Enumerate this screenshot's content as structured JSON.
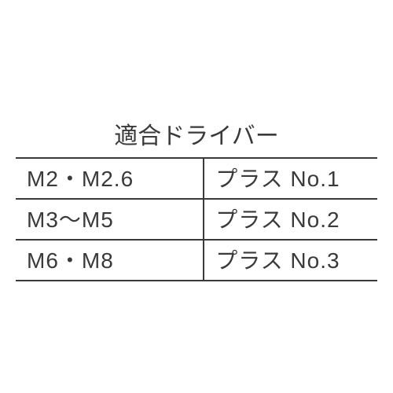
{
  "table": {
    "title": "適合ドライバー",
    "title_fontsize": 30,
    "cell_fontsize": 28,
    "text_color": "#3a3a3a",
    "border_color": "#3a3a3a",
    "background_color": "#ffffff",
    "border_width": 2,
    "columns": [
      {
        "key": "size",
        "width_pct": 52,
        "align": "left"
      },
      {
        "key": "driver",
        "width_pct": 48,
        "align": "left"
      }
    ],
    "rows": [
      {
        "size": "M2・M2.6",
        "driver": "プラス No.1"
      },
      {
        "size": "M3～M5",
        "driver": "プラス No.2"
      },
      {
        "size": "M6・M8",
        "driver": "プラス No.3"
      }
    ]
  }
}
